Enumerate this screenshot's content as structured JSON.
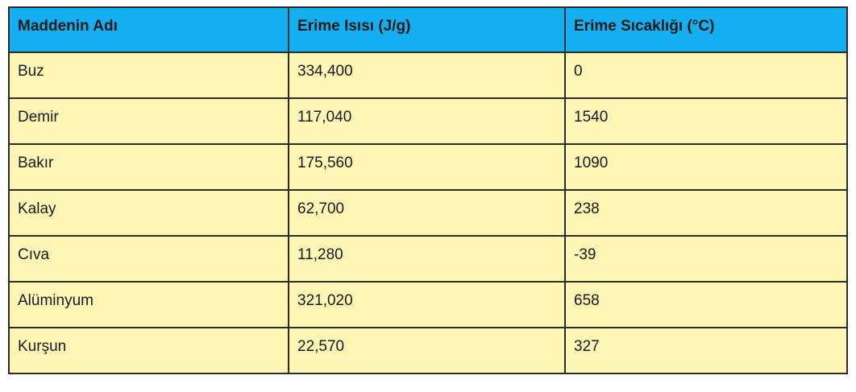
{
  "table": {
    "header": [
      "Maddenin Adı",
      "Erime Isısı (J/g)",
      "Erime Sıcaklığı (°C)"
    ],
    "rows": [
      [
        "Buz",
        "334,400",
        "0"
      ],
      [
        "Demir",
        "117,040",
        "1540"
      ],
      [
        "Bakır",
        "175,560",
        "1090"
      ],
      [
        "Kalay",
        "62,700",
        "238"
      ],
      [
        "Cıva",
        "11,280",
        "-39"
      ],
      [
        "Alüminyum",
        "321,020",
        "658"
      ],
      [
        "Kurşun",
        "22,570",
        "327"
      ]
    ]
  }
}
